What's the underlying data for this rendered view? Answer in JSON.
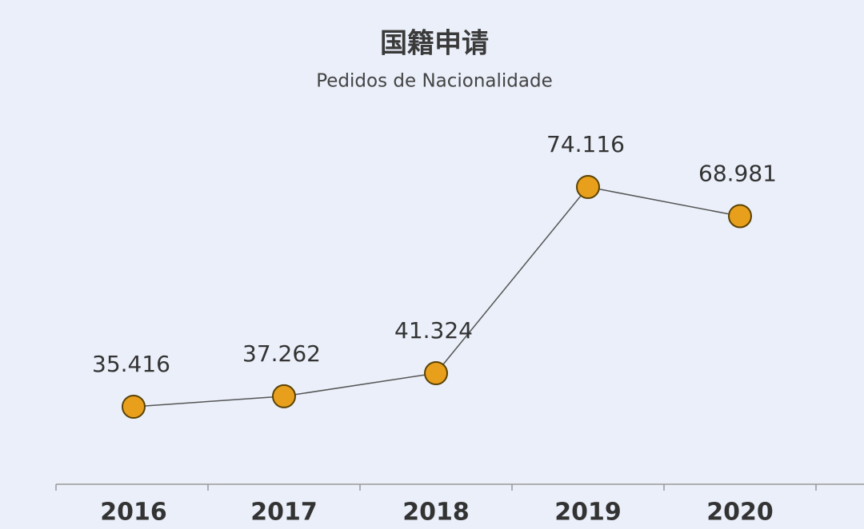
{
  "chart_data": {
    "type": "line",
    "title": "国籍申请",
    "subtitle": "Pedidos de Nacionalidade",
    "categories": [
      "2016",
      "2017",
      "2018",
      "2019",
      "2020"
    ],
    "values": [
      35416,
      37262,
      41324,
      74116,
      68981
    ],
    "value_labels": [
      "35.416",
      "37.262",
      "41.324",
      "74.116",
      "68.981"
    ],
    "color": "#e8a01c"
  }
}
